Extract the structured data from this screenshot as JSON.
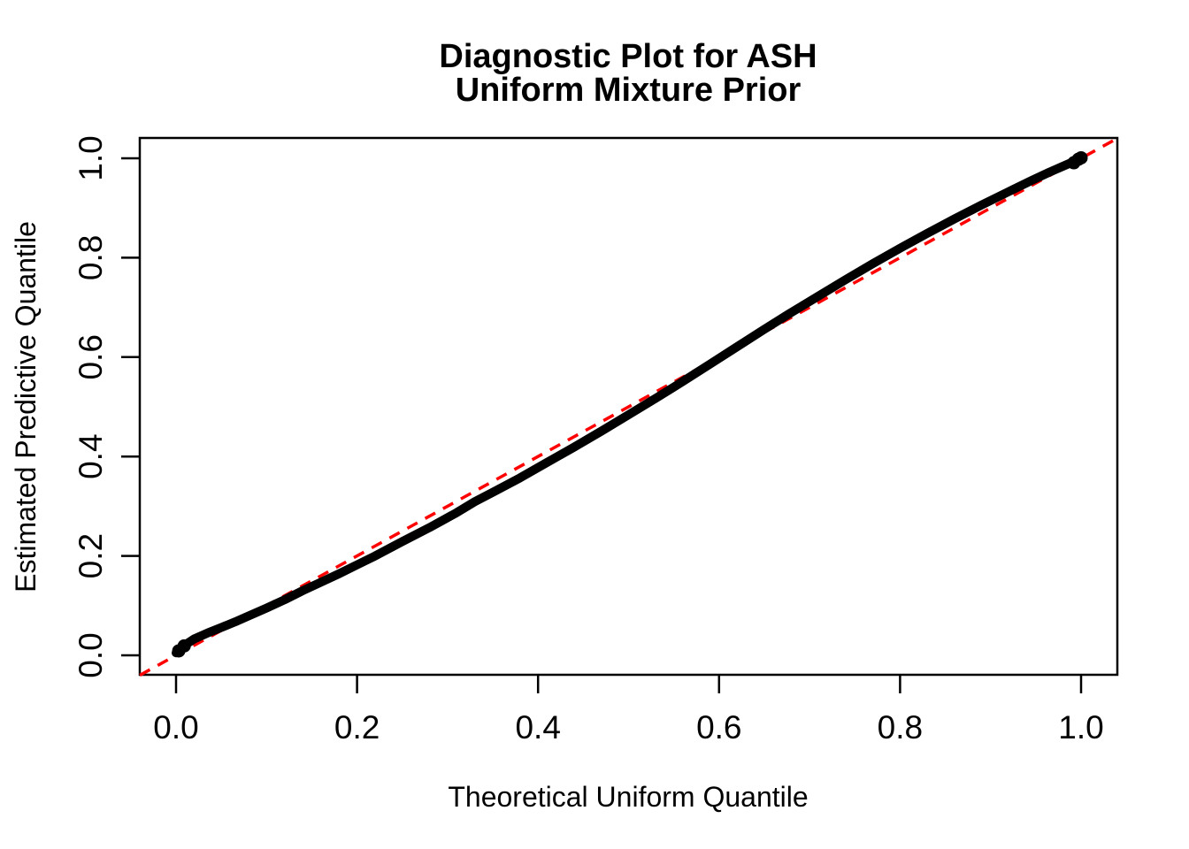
{
  "page": {
    "background_color": "#FFFFFF"
  },
  "chart_data": {
    "type": "line",
    "title_lines": [
      "Diagnostic Plot for ASH",
      "Uniform Mixture Prior"
    ],
    "xlabel": "Theoretical Uniform Quantile",
    "ylabel": "Estimated Predictive Quantile",
    "xlim": [
      -0.04,
      1.04
    ],
    "ylim": [
      -0.04,
      1.04
    ],
    "grid": false,
    "legend": "none",
    "x_ticks": [
      0.0,
      0.2,
      0.4,
      0.6,
      0.8,
      1.0
    ],
    "y_ticks": [
      0.0,
      0.2,
      0.4,
      0.6,
      0.8,
      1.0
    ],
    "x_tick_labels": [
      "0.0",
      "0.2",
      "0.4",
      "0.6",
      "0.8",
      "1.0"
    ],
    "y_tick_labels": [
      "0.0",
      "0.2",
      "0.4",
      "0.6",
      "0.8",
      "1.0"
    ],
    "series": [
      {
        "name": "empirical-quantile-curve",
        "color": "#000000",
        "style": "thick-overplotted-points",
        "points": [
          [
            0.0,
            0.005
          ],
          [
            0.01,
            0.021
          ],
          [
            0.02,
            0.033
          ],
          [
            0.035,
            0.045
          ],
          [
            0.05,
            0.056
          ],
          [
            0.065,
            0.067
          ],
          [
            0.08,
            0.079
          ],
          [
            0.1,
            0.095
          ],
          [
            0.12,
            0.112
          ],
          [
            0.14,
            0.13
          ],
          [
            0.16,
            0.147
          ],
          [
            0.18,
            0.164
          ],
          [
            0.2,
            0.182
          ],
          [
            0.22,
            0.2
          ],
          [
            0.25,
            0.229
          ],
          [
            0.28,
            0.257
          ],
          [
            0.31,
            0.287
          ],
          [
            0.33,
            0.309
          ],
          [
            0.35,
            0.328
          ],
          [
            0.38,
            0.357
          ],
          [
            0.41,
            0.388
          ],
          [
            0.44,
            0.419
          ],
          [
            0.47,
            0.451
          ],
          [
            0.5,
            0.484
          ],
          [
            0.53,
            0.517
          ],
          [
            0.56,
            0.551
          ],
          [
            0.59,
            0.586
          ],
          [
            0.62,
            0.621
          ],
          [
            0.65,
            0.656
          ],
          [
            0.68,
            0.69
          ],
          [
            0.71,
            0.723
          ],
          [
            0.74,
            0.756
          ],
          [
            0.77,
            0.788
          ],
          [
            0.8,
            0.819
          ],
          [
            0.83,
            0.849
          ],
          [
            0.86,
            0.878
          ],
          [
            0.89,
            0.906
          ],
          [
            0.92,
            0.933
          ],
          [
            0.945,
            0.955
          ],
          [
            0.965,
            0.972
          ],
          [
            0.98,
            0.984
          ],
          [
            0.99,
            0.992
          ],
          [
            1.0,
            1.001
          ]
        ],
        "dense_clusters": {
          "start": [
            [
              0.003,
              0.009
            ],
            [
              0.009,
              0.019
            ]
          ],
          "end": [
            [
              0.992,
              0.991
            ],
            [
              0.997,
              0.998
            ],
            [
              1.0,
              1.001
            ]
          ]
        }
      }
    ],
    "reference_line": {
      "name": "identity-line",
      "equation": "y = x",
      "color": "#FF0000",
      "style": "dashed",
      "from": [
        -0.04,
        -0.04
      ],
      "to": [
        1.04,
        1.04
      ]
    }
  }
}
